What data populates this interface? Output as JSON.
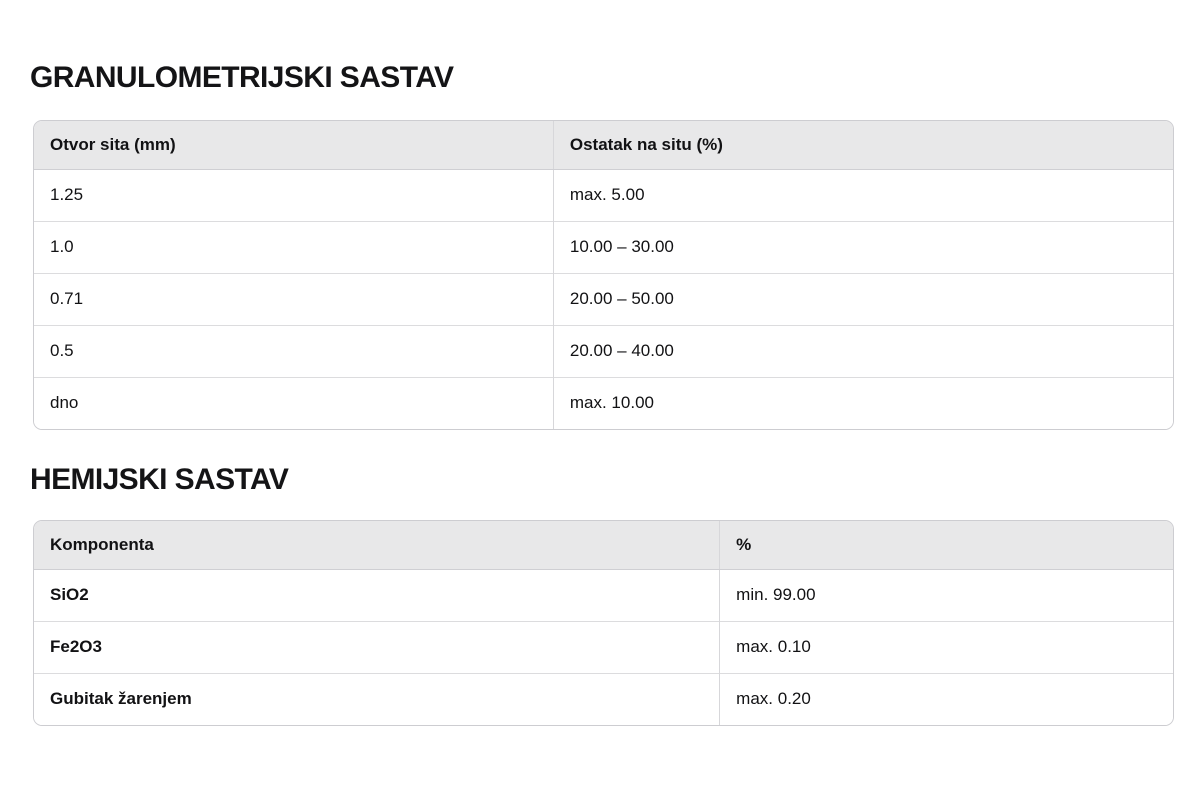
{
  "page": {
    "background_color": "#ffffff",
    "text_color": "#121214",
    "header_bg_color": "#e8e8e9",
    "border_color": "#cdcdd1",
    "row_divider_color": "#dcdcde"
  },
  "sections": {
    "granulometrijski": {
      "title": "GRANULOMETRIJSKI SASTAV",
      "headers": [
        "Otvor sita (mm)",
        "Ostatak na situ (%)"
      ],
      "rows": [
        [
          "1.25",
          "max. 5.00"
        ],
        [
          "1.0",
          "10.00 – 30.00"
        ],
        [
          "0.71",
          "20.00 – 50.00"
        ],
        [
          "0.5",
          "20.00 – 40.00"
        ],
        [
          "dno",
          "max. 10.00"
        ]
      ]
    },
    "hemijski": {
      "title": "HEMIJSKI SASTAV",
      "headers": [
        "Komponenta",
        "%"
      ],
      "rows": [
        [
          "SiO2",
          "min. 99.00"
        ],
        [
          "Fe2O3",
          "max. 0.10"
        ],
        [
          "Gubitak žarenjem",
          "max. 0.20"
        ]
      ]
    }
  }
}
